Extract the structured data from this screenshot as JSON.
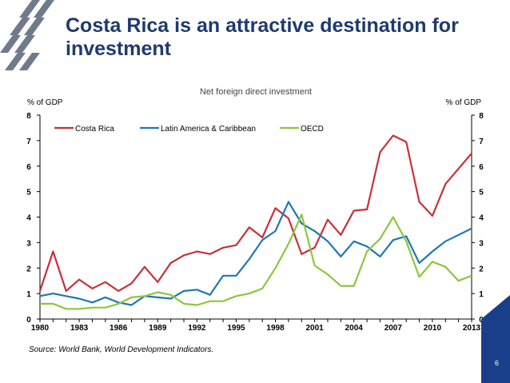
{
  "slide": {
    "title": "Costa Rica is an attractive  destination for investment",
    "source": "Source: World Bank, World Development Indicators.",
    "page_number": "6",
    "accent_color": "#1f3a6e",
    "logo_color": "#6f7b8c",
    "corner_color": "#1a3f8a",
    "logo_icon": "oecd-chevrons-icon"
  },
  "chart_data": {
    "type": "line",
    "title": "Net foreign direct investment",
    "ylabel_left": "% of GDP",
    "ylabel_right": "% of GDP",
    "ylim": [
      0,
      8
    ],
    "yticks": [
      "0",
      "1",
      "2",
      "3",
      "4",
      "5",
      "6",
      "7",
      "8"
    ],
    "xlim": [
      1980,
      2013
    ],
    "xticks": [
      "1980",
      "1983",
      "1986",
      "1989",
      "1992",
      "1995",
      "1998",
      "2001",
      "2004",
      "2007",
      "2010",
      "2013"
    ],
    "grid": false,
    "legend_position": "top",
    "x": [
      1980,
      1981,
      1982,
      1983,
      1984,
      1985,
      1986,
      1987,
      1988,
      1989,
      1990,
      1991,
      1992,
      1993,
      1994,
      1995,
      1996,
      1997,
      1998,
      1999,
      2000,
      2001,
      2002,
      2003,
      2004,
      2005,
      2006,
      2007,
      2008,
      2009,
      2010,
      2011,
      2012,
      2013
    ],
    "series": [
      {
        "name": "Costa Rica",
        "color": "#c8303a",
        "values": [
          1.1,
          2.65,
          1.1,
          1.55,
          1.2,
          1.45,
          1.1,
          1.4,
          2.05,
          1.45,
          2.2,
          2.5,
          2.65,
          2.55,
          2.8,
          2.9,
          3.6,
          3.2,
          4.35,
          3.95,
          2.55,
          2.8,
          3.9,
          3.3,
          4.25,
          4.3,
          6.55,
          7.2,
          6.95,
          4.6,
          4.05,
          5.3,
          5.9,
          6.5
        ]
      },
      {
        "name": "Latin America & Caribbean",
        "color": "#1f78b4",
        "values": [
          0.9,
          1.0,
          0.9,
          0.8,
          0.65,
          0.85,
          0.65,
          0.55,
          0.9,
          0.85,
          0.8,
          1.1,
          1.15,
          0.95,
          1.7,
          1.7,
          2.35,
          3.1,
          3.45,
          4.6,
          3.75,
          3.45,
          3.05,
          2.45,
          3.05,
          2.85,
          2.45,
          3.1,
          3.25,
          2.2,
          2.65,
          3.05,
          3.3,
          3.55
        ]
      },
      {
        "name": "OECD",
        "color": "#8dc63f",
        "values": [
          0.6,
          0.6,
          0.4,
          0.4,
          0.45,
          0.45,
          0.6,
          0.85,
          0.9,
          1.05,
          0.95,
          0.6,
          0.55,
          0.7,
          0.7,
          0.9,
          1.0,
          1.2,
          2.0,
          2.95,
          4.1,
          2.1,
          1.75,
          1.3,
          1.3,
          2.65,
          3.15,
          4.0,
          3.05,
          1.65,
          2.25,
          2.05,
          1.5,
          1.7
        ]
      }
    ]
  }
}
